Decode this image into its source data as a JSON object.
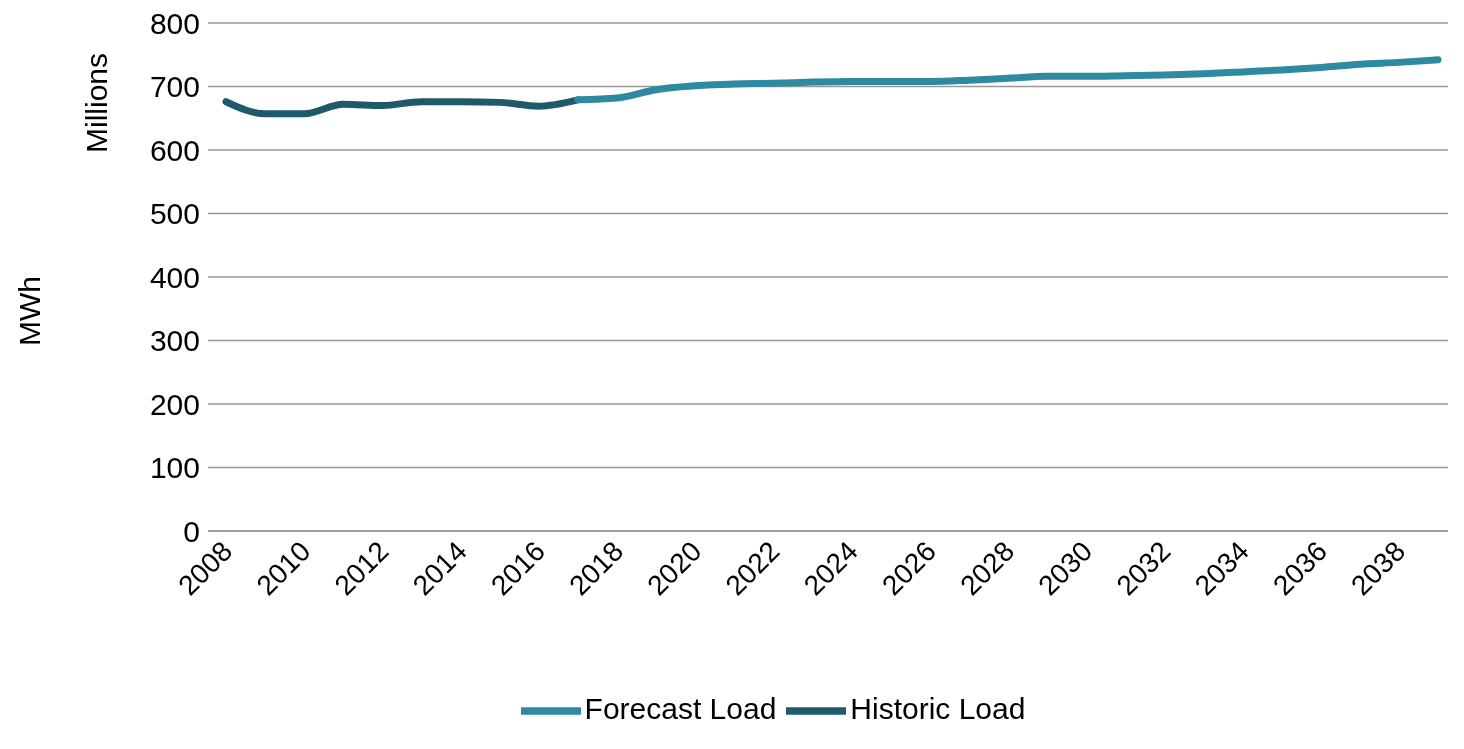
{
  "chart_data": {
    "type": "line",
    "ylabel": "MWh",
    "annotations": [
      "Millions"
    ],
    "categories": [
      "2008",
      null,
      "2010",
      null,
      "2012",
      null,
      "2014",
      null,
      "2016",
      null,
      "2018",
      null,
      "2020",
      null,
      "2022",
      null,
      "2024",
      null,
      "2026",
      null,
      "2028",
      null,
      "2030",
      null,
      "2032",
      null,
      "2034",
      null,
      "2036",
      null,
      "2038",
      null
    ],
    "series": [
      {
        "name": "Historic Load",
        "color": "#1f5a6b",
        "values": [
          676,
          657,
          657,
          672,
          670,
          676,
          676,
          675,
          669,
          679,
          null,
          null,
          null,
          null,
          null,
          null,
          null,
          null,
          null,
          null,
          null,
          null,
          null,
          null,
          null,
          null,
          null,
          null,
          null,
          null,
          null,
          null
        ]
      },
      {
        "name": "Forecast Load",
        "color": "#2e8aa0",
        "values": [
          null,
          null,
          null,
          null,
          null,
          null,
          null,
          null,
          null,
          679,
          682,
          695,
          701,
          704,
          705,
          707,
          708,
          708,
          708,
          710,
          713,
          716,
          716,
          717,
          718,
          720,
          723,
          726,
          730,
          735,
          738,
          742
        ]
      }
    ],
    "ylim": [
      0,
      800
    ],
    "yticks": [
      0,
      100,
      200,
      300,
      400,
      500,
      600,
      700,
      800
    ],
    "grid": "y",
    "legend": "bottom",
    "marker": "none",
    "line_style": "solid"
  }
}
